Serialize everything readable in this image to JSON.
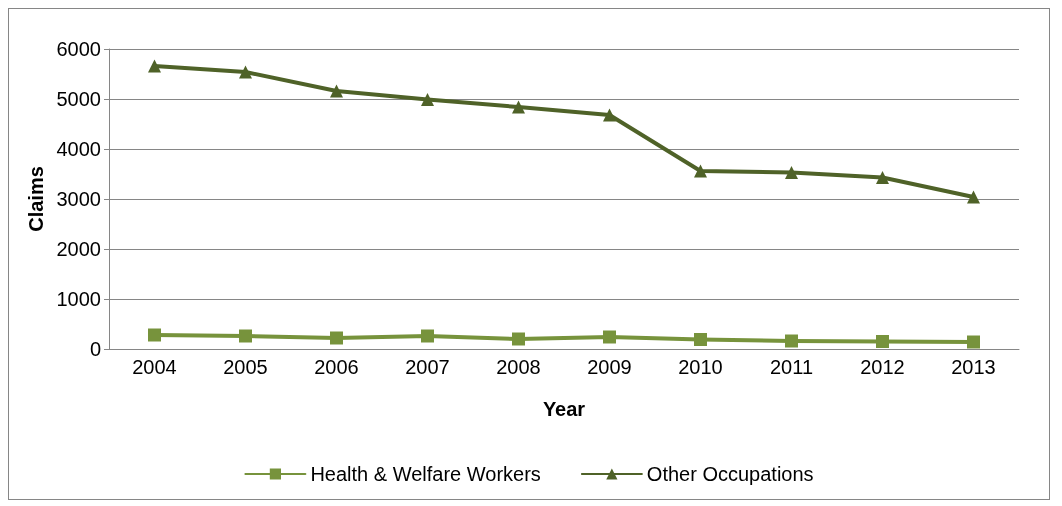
{
  "chart_data": {
    "type": "line",
    "xlabel": "Year",
    "ylabel": "Claims",
    "categories": [
      "2004",
      "2005",
      "2006",
      "2007",
      "2008",
      "2009",
      "2010",
      "2011",
      "2012",
      "2013"
    ],
    "series": [
      {
        "name": "Health & Welfare Workers",
        "color": "#77933c",
        "marker": "square",
        "values": [
          280,
          260,
          220,
          260,
          200,
          240,
          190,
          160,
          150,
          140
        ]
      },
      {
        "name": "Other Occupations",
        "color": "#4f6228",
        "marker": "triangle",
        "values": [
          5660,
          5540,
          5160,
          4990,
          4840,
          4680,
          3560,
          3530,
          3430,
          3040
        ]
      }
    ],
    "ylim": [
      0,
      6000
    ],
    "yticks": [
      0,
      1000,
      2000,
      3000,
      4000,
      5000,
      6000
    ],
    "grid": "y",
    "legend": "bottom",
    "line_style": "solid"
  }
}
